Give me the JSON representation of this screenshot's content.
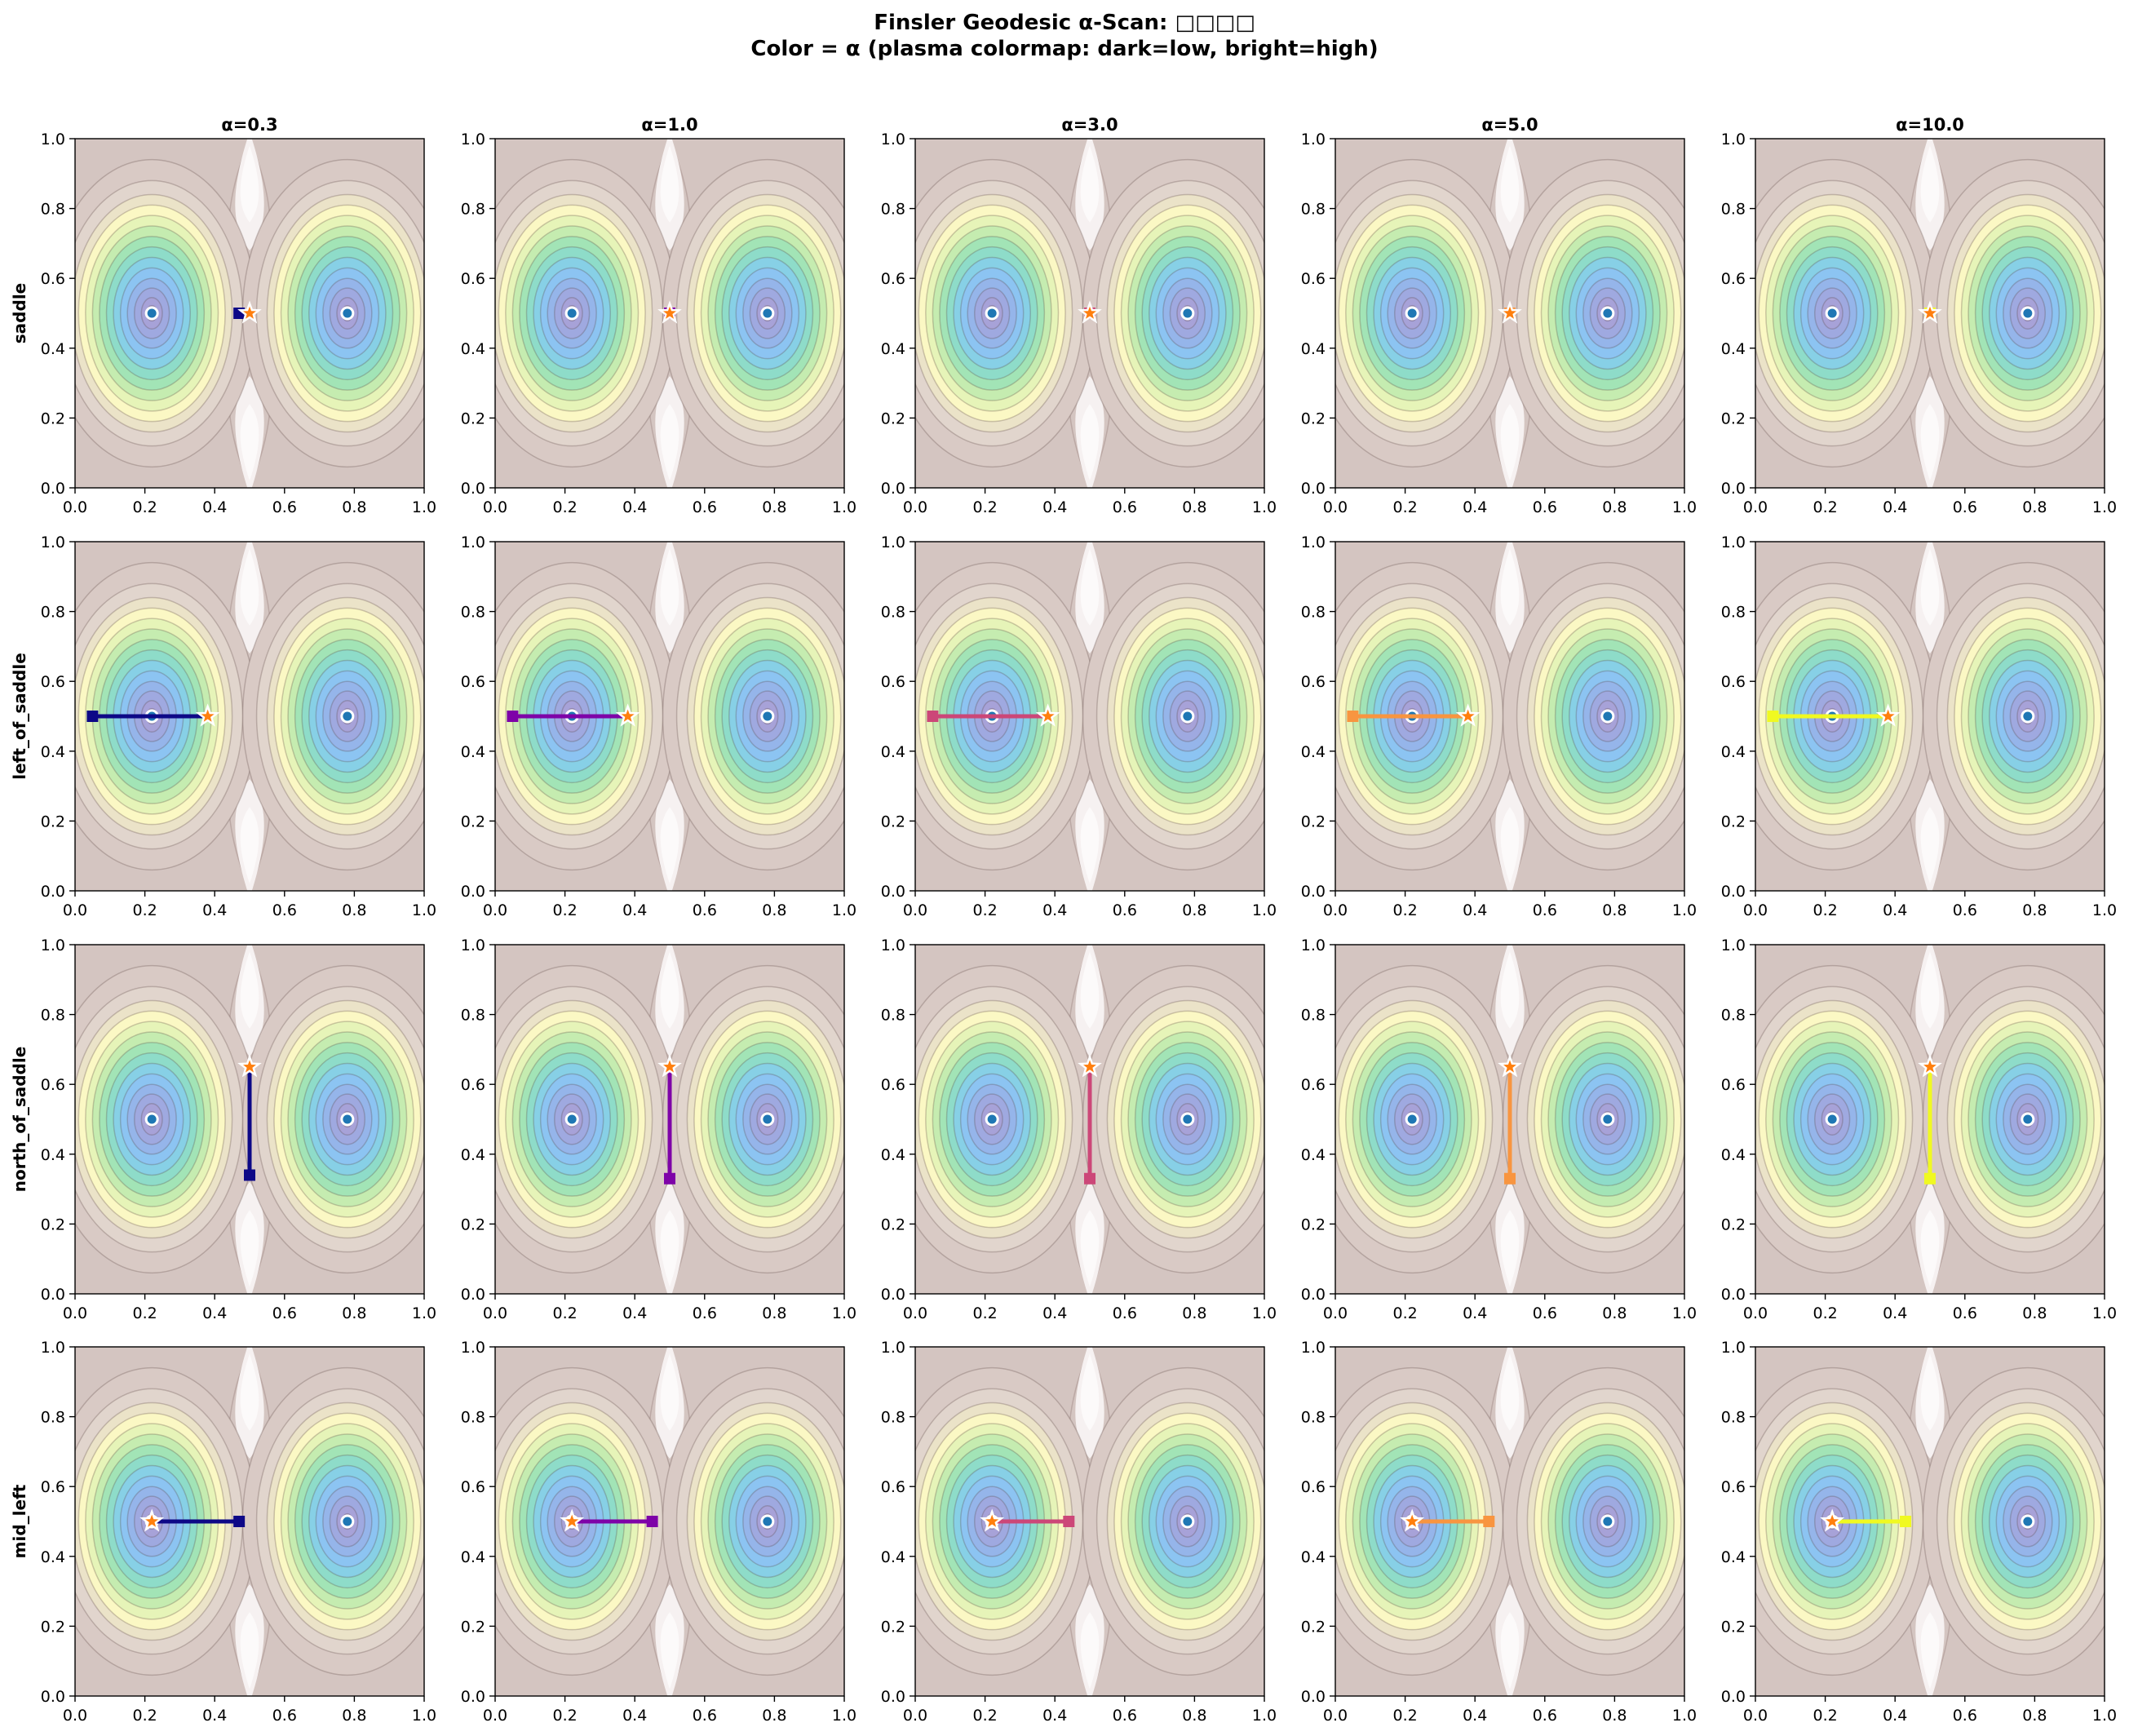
{
  "figure": {
    "title_line1": "Finsler Geodesic α-Scan: □□□□",
    "title_line2": "Color = α (plasma colormap: dark=low, bright=high)"
  },
  "colors": {
    "alpha_0.3": "#0d0887",
    "alpha_1.0": "#7e03a8",
    "alpha_3.0": "#cc4778",
    "alpha_5.0": "#f89540",
    "alpha_10.0": "#f0f921",
    "minimum_marker": "#1f77b4",
    "start_star": "#ff7f0e"
  },
  "chart_data": {
    "type": "line",
    "layout": "small-multiples grid, 4 rows × 5 columns",
    "background": "filled contour plot of a double-well potential with minima at (0.22, 0.5) and (0.78, 0.5) and saddle at (0.5, 0.5)",
    "columns": [
      "α=0.3",
      "α=1.0",
      "α=3.0",
      "α=5.0",
      "α=10.0"
    ],
    "alphas": [
      0.3,
      1.0,
      3.0,
      5.0,
      10.0
    ],
    "rows": [
      "saddle",
      "left_of_saddle",
      "north_of_saddle",
      "mid_left"
    ],
    "xlim": [
      0,
      1
    ],
    "ylim": [
      0,
      1
    ],
    "xticks": [
      "0.0",
      "0.2",
      "0.4",
      "0.6",
      "0.8",
      "1.0"
    ],
    "yticks": [
      "0.0",
      "0.2",
      "0.4",
      "0.6",
      "0.8",
      "1.0"
    ],
    "minima": [
      [
        0.22,
        0.5
      ],
      [
        0.78,
        0.5
      ]
    ],
    "legend": "none",
    "paths": {
      "saddle": [
        {
          "start": [
            0.5,
            0.5
          ],
          "end": [
            0.47,
            0.5
          ]
        },
        {
          "start": [
            0.5,
            0.5
          ],
          "end": [
            0.5,
            0.5
          ]
        },
        {
          "start": [
            0.5,
            0.5
          ],
          "end": [
            0.5,
            0.5
          ]
        },
        {
          "start": [
            0.5,
            0.5
          ],
          "end": [
            0.5,
            0.5
          ]
        },
        {
          "start": [
            0.5,
            0.5
          ],
          "end": [
            0.5,
            0.5
          ]
        }
      ],
      "left_of_saddle": [
        {
          "start": [
            0.38,
            0.5
          ],
          "end": [
            0.05,
            0.5
          ]
        },
        {
          "start": [
            0.38,
            0.5
          ],
          "end": [
            0.05,
            0.5
          ]
        },
        {
          "start": [
            0.38,
            0.5
          ],
          "end": [
            0.05,
            0.5
          ]
        },
        {
          "start": [
            0.38,
            0.5
          ],
          "end": [
            0.05,
            0.5
          ]
        },
        {
          "start": [
            0.38,
            0.5
          ],
          "end": [
            0.05,
            0.5
          ]
        }
      ],
      "north_of_saddle": [
        {
          "start": [
            0.5,
            0.65
          ],
          "end": [
            0.5,
            0.34
          ]
        },
        {
          "start": [
            0.5,
            0.65
          ],
          "end": [
            0.5,
            0.33
          ]
        },
        {
          "start": [
            0.5,
            0.65
          ],
          "end": [
            0.5,
            0.33
          ]
        },
        {
          "start": [
            0.5,
            0.65
          ],
          "end": [
            0.5,
            0.33
          ]
        },
        {
          "start": [
            0.5,
            0.65
          ],
          "end": [
            0.5,
            0.33
          ]
        }
      ],
      "mid_left": [
        {
          "start": [
            0.22,
            0.5
          ],
          "end": [
            0.47,
            0.5
          ]
        },
        {
          "start": [
            0.22,
            0.5
          ],
          "end": [
            0.45,
            0.5
          ]
        },
        {
          "start": [
            0.22,
            0.5
          ],
          "end": [
            0.44,
            0.5
          ]
        },
        {
          "start": [
            0.22,
            0.5
          ],
          "end": [
            0.44,
            0.5
          ]
        },
        {
          "start": [
            0.22,
            0.5
          ],
          "end": [
            0.43,
            0.5
          ]
        }
      ]
    }
  }
}
